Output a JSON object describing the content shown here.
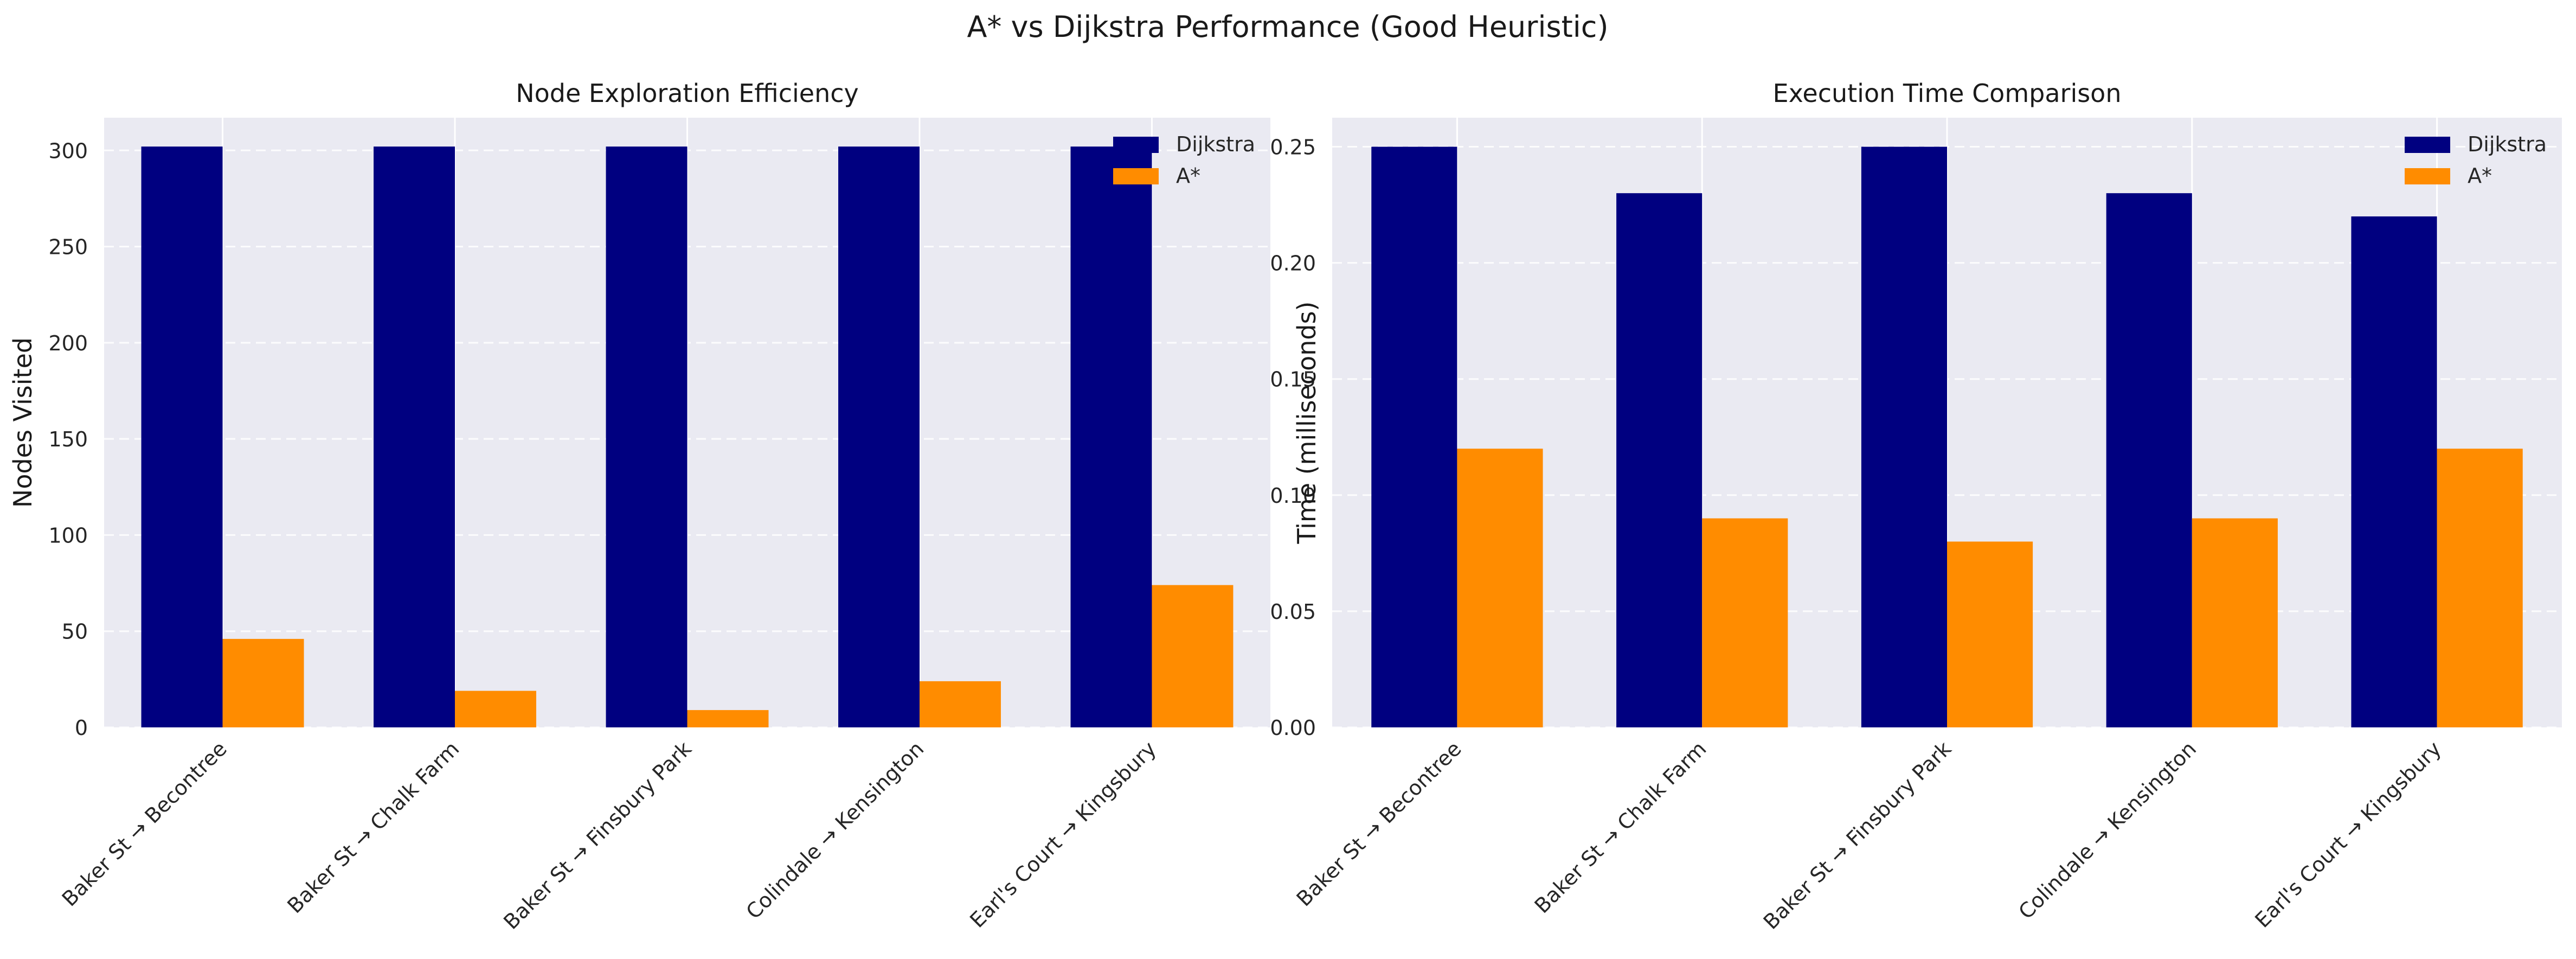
{
  "figure": {
    "suptitle": "A* vs Dijkstra Performance (Good Heuristic)"
  },
  "colors": {
    "dijkstra": "#000080",
    "astar": "#FF8C00",
    "plot_bg": "#EAEAF2",
    "grid": "#FFFFFF"
  },
  "chart_data": [
    {
      "type": "bar",
      "title": "Node Exploration Efficiency",
      "xlabel": "",
      "ylabel": "Nodes Visited",
      "categories": [
        "Baker St → Becontree",
        "Baker St → Chalk Farm",
        "Baker St → Finsbury Park",
        "Colindale → Kensington",
        "Earl's Court → Kingsbury"
      ],
      "series": [
        {
          "name": "Dijkstra",
          "values": [
            302,
            302,
            302,
            302,
            302
          ]
        },
        {
          "name": "A*",
          "values": [
            46,
            19,
            9,
            24,
            74
          ]
        }
      ],
      "ylim": [
        0,
        317
      ],
      "yticks": [
        0,
        50,
        100,
        150,
        200,
        250,
        300
      ],
      "ytick_labels": [
        "0",
        "50",
        "100",
        "150",
        "200",
        "250",
        "300"
      ],
      "grid": true,
      "legend": "top-right"
    },
    {
      "type": "bar",
      "title": "Execution Time Comparison",
      "xlabel": "",
      "ylabel": "Time (milliseconds)",
      "categories": [
        "Baker St → Becontree",
        "Baker St → Chalk Farm",
        "Baker St → Finsbury Park",
        "Colindale → Kensington",
        "Earl's Court → Kingsbury"
      ],
      "series": [
        {
          "name": "Dijkstra",
          "values": [
            0.25,
            0.23,
            0.25,
            0.23,
            0.22
          ]
        },
        {
          "name": "A*",
          "values": [
            0.12,
            0.09,
            0.08,
            0.09,
            0.12
          ]
        }
      ],
      "ylim": [
        0,
        0.2625
      ],
      "yticks": [
        0,
        0.05,
        0.1,
        0.15,
        0.2,
        0.25
      ],
      "ytick_labels": [
        "0.00",
        "0.05",
        "0.10",
        "0.15",
        "0.20",
        "0.25"
      ],
      "grid": true,
      "legend": "top-right"
    }
  ]
}
